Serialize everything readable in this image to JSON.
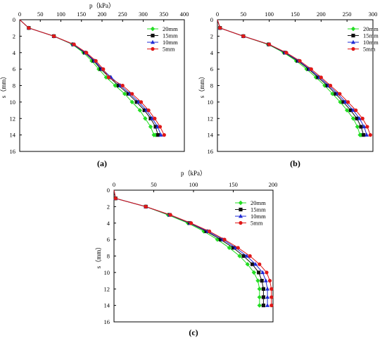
{
  "figure": {
    "background": "#ffffff"
  },
  "chart_data": [
    {
      "id": "a",
      "type": "line",
      "caption": "(a)",
      "xlabel": "p（kPa）",
      "ylabel": "s（mm）",
      "xlim": [
        0,
        400
      ],
      "ylim": [
        0,
        16
      ],
      "y_inverted": true,
      "x_axis_position": "top",
      "xticks": [
        0,
        50,
        100,
        150,
        200,
        250,
        300,
        350,
        400
      ],
      "yticks": [
        0,
        2,
        4,
        6,
        8,
        10,
        12,
        14,
        16
      ],
      "legend_position": "top-right",
      "series": [
        {
          "name": "20mm",
          "color": "#22dd22",
          "marker": "diamond",
          "x": [
            0,
            22,
            83,
            128,
            155,
            175,
            192,
            210,
            232,
            255,
            273,
            292,
            305,
            318,
            326,
            330
          ],
          "y": [
            0,
            1,
            2,
            3,
            4,
            5,
            6,
            7,
            8,
            9,
            10,
            11,
            12,
            13,
            14,
            14
          ]
        },
        {
          "name": "15mm",
          "color": "#111111",
          "marker": "square",
          "x": [
            0,
            22,
            83,
            130,
            158,
            180,
            197,
            218,
            240,
            264,
            284,
            303,
            318,
            330,
            336
          ],
          "y": [
            0,
            1,
            2,
            3,
            4,
            5,
            6,
            7,
            8,
            9,
            10,
            11,
            12,
            13,
            14
          ]
        },
        {
          "name": "10mm",
          "color": "#1f2bd6",
          "marker": "triangle",
          "x": [
            0,
            22,
            83,
            130,
            160,
            182,
            200,
            222,
            245,
            268,
            289,
            308,
            322,
            335,
            343
          ],
          "y": [
            0,
            1,
            2,
            3,
            4,
            5,
            6,
            7,
            8,
            9,
            10,
            11,
            12,
            13,
            14
          ]
        },
        {
          "name": "5mm",
          "color": "#e01818",
          "marker": "circle",
          "x": [
            0,
            22,
            83,
            132,
            162,
            185,
            203,
            216,
            250,
            273,
            295,
            313,
            328,
            341,
            351
          ],
          "y": [
            0,
            1,
            2,
            3,
            4,
            5,
            6,
            7,
            8,
            9,
            10,
            11,
            12,
            13,
            14
          ]
        }
      ]
    },
    {
      "id": "b",
      "type": "line",
      "caption": "(b)",
      "xlabel": "",
      "ylabel": "s（mm）",
      "xlim": [
        0,
        300
      ],
      "ylim": [
        0,
        16
      ],
      "y_inverted": true,
      "x_axis_position": "top",
      "xticks": [
        0,
        50,
        100,
        150,
        200,
        250,
        300
      ],
      "yticks": [
        0,
        2,
        4,
        6,
        8,
        10,
        12,
        14,
        16
      ],
      "legend_position": "top-right",
      "series": [
        {
          "name": "20mm",
          "color": "#22dd22",
          "marker": "diamond",
          "x": [
            0,
            5,
            50,
            98,
            128,
            152,
            172,
            190,
            207,
            222,
            237,
            250,
            262,
            270,
            275,
            277
          ],
          "y": [
            0,
            1,
            2,
            3,
            4,
            5,
            6,
            7,
            8,
            9,
            10,
            11,
            12,
            13,
            14,
            14
          ]
        },
        {
          "name": "15mm",
          "color": "#111111",
          "marker": "square",
          "x": [
            0,
            5,
            50,
            99,
            130,
            155,
            176,
            194,
            212,
            228,
            243,
            257,
            269,
            277,
            282
          ],
          "y": [
            0,
            1,
            2,
            3,
            4,
            5,
            6,
            7,
            8,
            9,
            10,
            11,
            12,
            13,
            14
          ]
        },
        {
          "name": "10mm",
          "color": "#1f2bd6",
          "marker": "triangle",
          "x": [
            0,
            5,
            50,
            100,
            131,
            157,
            178,
            197,
            215,
            232,
            247,
            262,
            274,
            283,
            288
          ],
          "y": [
            0,
            1,
            2,
            3,
            4,
            5,
            6,
            7,
            8,
            9,
            10,
            11,
            12,
            13,
            14
          ]
        },
        {
          "name": "5mm",
          "color": "#e01818",
          "marker": "circle",
          "x": [
            0,
            5,
            50,
            100,
            133,
            159,
            181,
            200,
            218,
            236,
            252,
            267,
            280,
            289,
            295
          ],
          "y": [
            0,
            1,
            2,
            3,
            4,
            5,
            6,
            7,
            8,
            9,
            10,
            11,
            12,
            13,
            14
          ]
        }
      ]
    },
    {
      "id": "c",
      "type": "line",
      "caption": "(c)",
      "xlabel": "p（kPa）",
      "ylabel": "s（mm）",
      "xlim": [
        0,
        200
      ],
      "ylim": [
        0,
        16
      ],
      "y_inverted": true,
      "x_axis_position": "top",
      "xticks": [
        0,
        50,
        100,
        150,
        200
      ],
      "yticks": [
        0,
        2,
        4,
        6,
        8,
        10,
        12,
        14,
        16
      ],
      "legend_position": "top-right",
      "series": [
        {
          "name": "20mm",
          "color": "#22dd22",
          "marker": "diamond",
          "x": [
            0,
            2,
            40,
            68,
            93,
            113,
            130,
            145,
            158,
            168,
            176,
            181,
            183,
            183,
            183
          ],
          "y": [
            0,
            1,
            2,
            3,
            4,
            5,
            6,
            7,
            8,
            9,
            10,
            11,
            12,
            13,
            14
          ]
        },
        {
          "name": "15mm",
          "color": "#111111",
          "marker": "square",
          "x": [
            0,
            2,
            40,
            70,
            95,
            116,
            134,
            150,
            163,
            174,
            182,
            186,
            188,
            188,
            188
          ],
          "y": [
            0,
            1,
            2,
            3,
            4,
            5,
            6,
            7,
            8,
            9,
            10,
            11,
            12,
            13,
            14
          ]
        },
        {
          "name": "10mm",
          "color": "#1f2bd6",
          "marker": "triangle",
          "x": [
            0,
            2,
            40,
            70,
            96,
            118,
            137,
            153,
            167,
            178,
            187,
            191,
            193,
            193,
            193
          ],
          "y": [
            0,
            1,
            2,
            3,
            4,
            5,
            6,
            7,
            8,
            9,
            10,
            11,
            12,
            13,
            14
          ]
        },
        {
          "name": "5mm",
          "color": "#e01818",
          "marker": "circle",
          "x": [
            0,
            2,
            40,
            71,
            97,
            120,
            139,
            156,
            171,
            183,
            192,
            196,
            198,
            198,
            198
          ],
          "y": [
            0,
            1,
            2,
            3,
            4,
            5,
            6,
            7,
            8,
            9,
            10,
            11,
            12,
            13,
            14
          ]
        }
      ]
    }
  ]
}
